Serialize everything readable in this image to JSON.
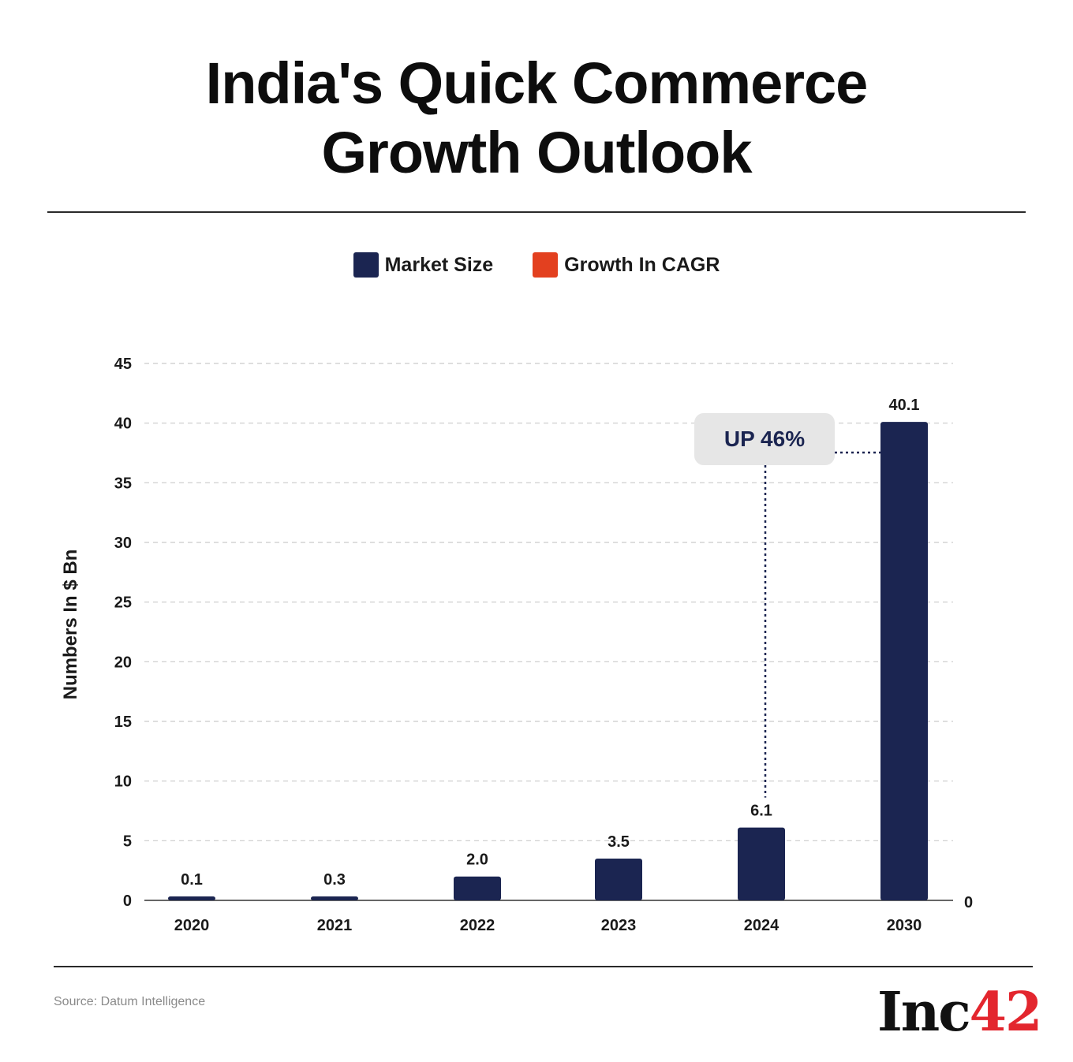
{
  "title": {
    "line1": "India's Quick Commerce",
    "line2": "Growth Outlook"
  },
  "legend": [
    {
      "label": "Market Size",
      "color": "#1b2551"
    },
    {
      "label": "Growth In CAGR",
      "color": "#e3401f"
    }
  ],
  "chart_data": {
    "type": "bar",
    "categories": [
      "2020",
      "2021",
      "2022",
      "2023",
      "2024",
      "2030"
    ],
    "series": [
      {
        "name": "Market Size",
        "values": [
          0.1,
          0.3,
          2.0,
          3.5,
          6.1,
          40.1
        ],
        "color": "#1b2551"
      }
    ],
    "data_labels": [
      "0.1",
      "0.3",
      "2.0",
      "3.5",
      "6.1",
      "40.1"
    ],
    "ylabel": "Numbers In $ Bn",
    "ylim": [
      0,
      45
    ],
    "yticks": [
      0,
      5,
      10,
      15,
      20,
      25,
      30,
      35,
      40,
      45
    ],
    "secondary_axis_label": "0",
    "grid": true,
    "annotation": {
      "text": "UP 46%",
      "from": "2024",
      "to": "2030"
    }
  },
  "footer": {
    "source": "Source: Datum Intelligence",
    "logo_text": "Inc",
    "logo_number": "42"
  }
}
